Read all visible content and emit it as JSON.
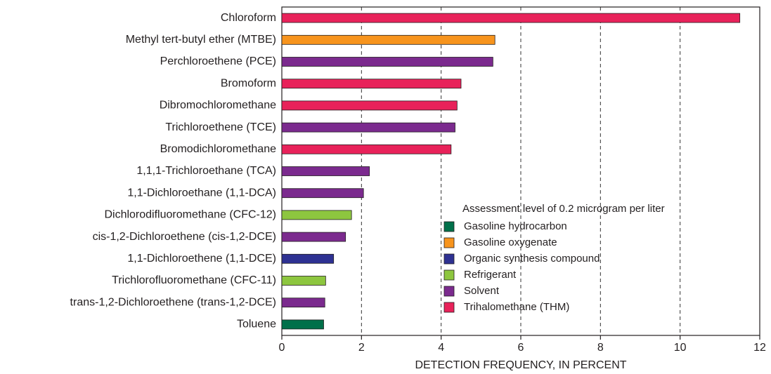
{
  "chart_data": {
    "type": "bar",
    "orientation": "horizontal",
    "xlabel": "DETECTION FREQUENCY, IN PERCENT",
    "legend_title": "Assessment level of 0.2 microgram per liter",
    "categories": [
      "Chloroform",
      "Methyl tert-butyl ether (MTBE)",
      "Perchloroethene (PCE)",
      "Bromoform",
      "Dibromochloromethane",
      "Trichloroethene (TCE)",
      "Bromodichloromethane",
      "1,1,1-Trichloroethane (TCA)",
      "1,1-Dichloroethane (1,1-DCA)",
      "Dichlorodifluoromethane (CFC-12)",
      "cis-1,2-Dichloroethene (cis-1,2-DCE)",
      "1,1-Dichloroethene (1,1-DCE)",
      "Trichlorofluoromethane (CFC-11)",
      "trans-1,2-Dichloroethene (trans-1,2-DCE)",
      "Toluene"
    ],
    "series": [
      {
        "name": "Gasoline hydrocarbon",
        "color": "#00704a",
        "values": [
          null,
          null,
          null,
          null,
          null,
          null,
          null,
          null,
          null,
          null,
          null,
          null,
          null,
          null,
          1.05
        ]
      },
      {
        "name": "Gasoline oxygenate",
        "color": "#f7941d",
        "values": [
          null,
          5.35,
          null,
          null,
          null,
          null,
          null,
          null,
          null,
          null,
          null,
          null,
          null,
          null,
          null
        ]
      },
      {
        "name": "Organic synthesis compound",
        "color": "#2e3192",
        "values": [
          null,
          null,
          null,
          null,
          null,
          null,
          null,
          null,
          null,
          null,
          null,
          1.3,
          null,
          null,
          null
        ]
      },
      {
        "name": "Refrigerant",
        "color": "#8dc63f",
        "values": [
          null,
          null,
          null,
          null,
          null,
          null,
          null,
          null,
          null,
          1.75,
          null,
          null,
          1.1,
          null,
          null
        ]
      },
      {
        "name": "Solvent",
        "color": "#7b2a8e",
        "values": [
          null,
          null,
          5.3,
          null,
          null,
          4.35,
          null,
          2.2,
          2.05,
          null,
          1.6,
          null,
          null,
          1.08,
          null
        ]
      },
      {
        "name": "Trihalomethane (THM)",
        "color": "#e8225a",
        "values": [
          11.5,
          null,
          null,
          4.5,
          4.4,
          null,
          4.25,
          null,
          null,
          null,
          null,
          null,
          null,
          null,
          null
        ]
      }
    ],
    "xlim": [
      0,
      12
    ],
    "xticks": [
      0,
      2,
      4,
      6,
      8,
      10,
      12
    ],
    "grid": true
  }
}
